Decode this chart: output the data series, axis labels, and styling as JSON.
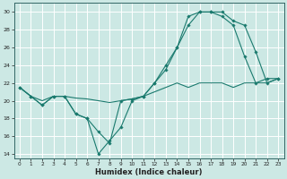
{
  "xlabel": "Humidex (Indice chaleur)",
  "bg_color": "#cce8e4",
  "grid_color": "#ffffff",
  "line_color": "#1a7a6e",
  "xlim": [
    -0.5,
    23.5
  ],
  "ylim": [
    13.5,
    31
  ],
  "yticks": [
    14,
    16,
    18,
    20,
    22,
    24,
    26,
    28,
    30
  ],
  "xticks": [
    0,
    1,
    2,
    3,
    4,
    5,
    6,
    7,
    8,
    9,
    10,
    11,
    12,
    13,
    14,
    15,
    16,
    17,
    18,
    19,
    20,
    21,
    22,
    23
  ],
  "line1_x": [
    0,
    1,
    2,
    3,
    4,
    5,
    6,
    7,
    8,
    9,
    10,
    11,
    12,
    13,
    14,
    15,
    16,
    17,
    18,
    19,
    20,
    21,
    22,
    23
  ],
  "line1_y": [
    21.5,
    20.5,
    19.5,
    20.5,
    20.5,
    18.5,
    18.0,
    16.5,
    15.2,
    20.0,
    20.2,
    20.5,
    22.0,
    24.0,
    26.0,
    29.5,
    30.0,
    30.0,
    29.5,
    28.5,
    25.0,
    22.0,
    22.5,
    22.5
  ],
  "line2_x": [
    0,
    1,
    2,
    3,
    4,
    5,
    6,
    7,
    8,
    9,
    10,
    11,
    12,
    13,
    14,
    15,
    16,
    17,
    18,
    19,
    20,
    21,
    22,
    23
  ],
  "line2_y": [
    21.5,
    20.5,
    19.5,
    20.5,
    20.5,
    18.5,
    18.0,
    14.0,
    15.5,
    17.0,
    20.0,
    20.5,
    22.0,
    23.5,
    26.0,
    28.5,
    30.0,
    30.0,
    30.0,
    29.0,
    28.5,
    25.5,
    22.0,
    22.5
  ],
  "line3_x": [
    0,
    1,
    2,
    3,
    4,
    5,
    6,
    7,
    8,
    9,
    10,
    11,
    12,
    13,
    14,
    15,
    16,
    17,
    18,
    19,
    20,
    21,
    22,
    23
  ],
  "line3_y": [
    21.5,
    20.5,
    20.0,
    20.5,
    20.5,
    20.3,
    20.2,
    20.0,
    19.8,
    20.0,
    20.2,
    20.5,
    21.0,
    21.5,
    22.0,
    21.5,
    22.0,
    22.0,
    22.0,
    21.5,
    22.0,
    22.0,
    22.0,
    22.5
  ]
}
